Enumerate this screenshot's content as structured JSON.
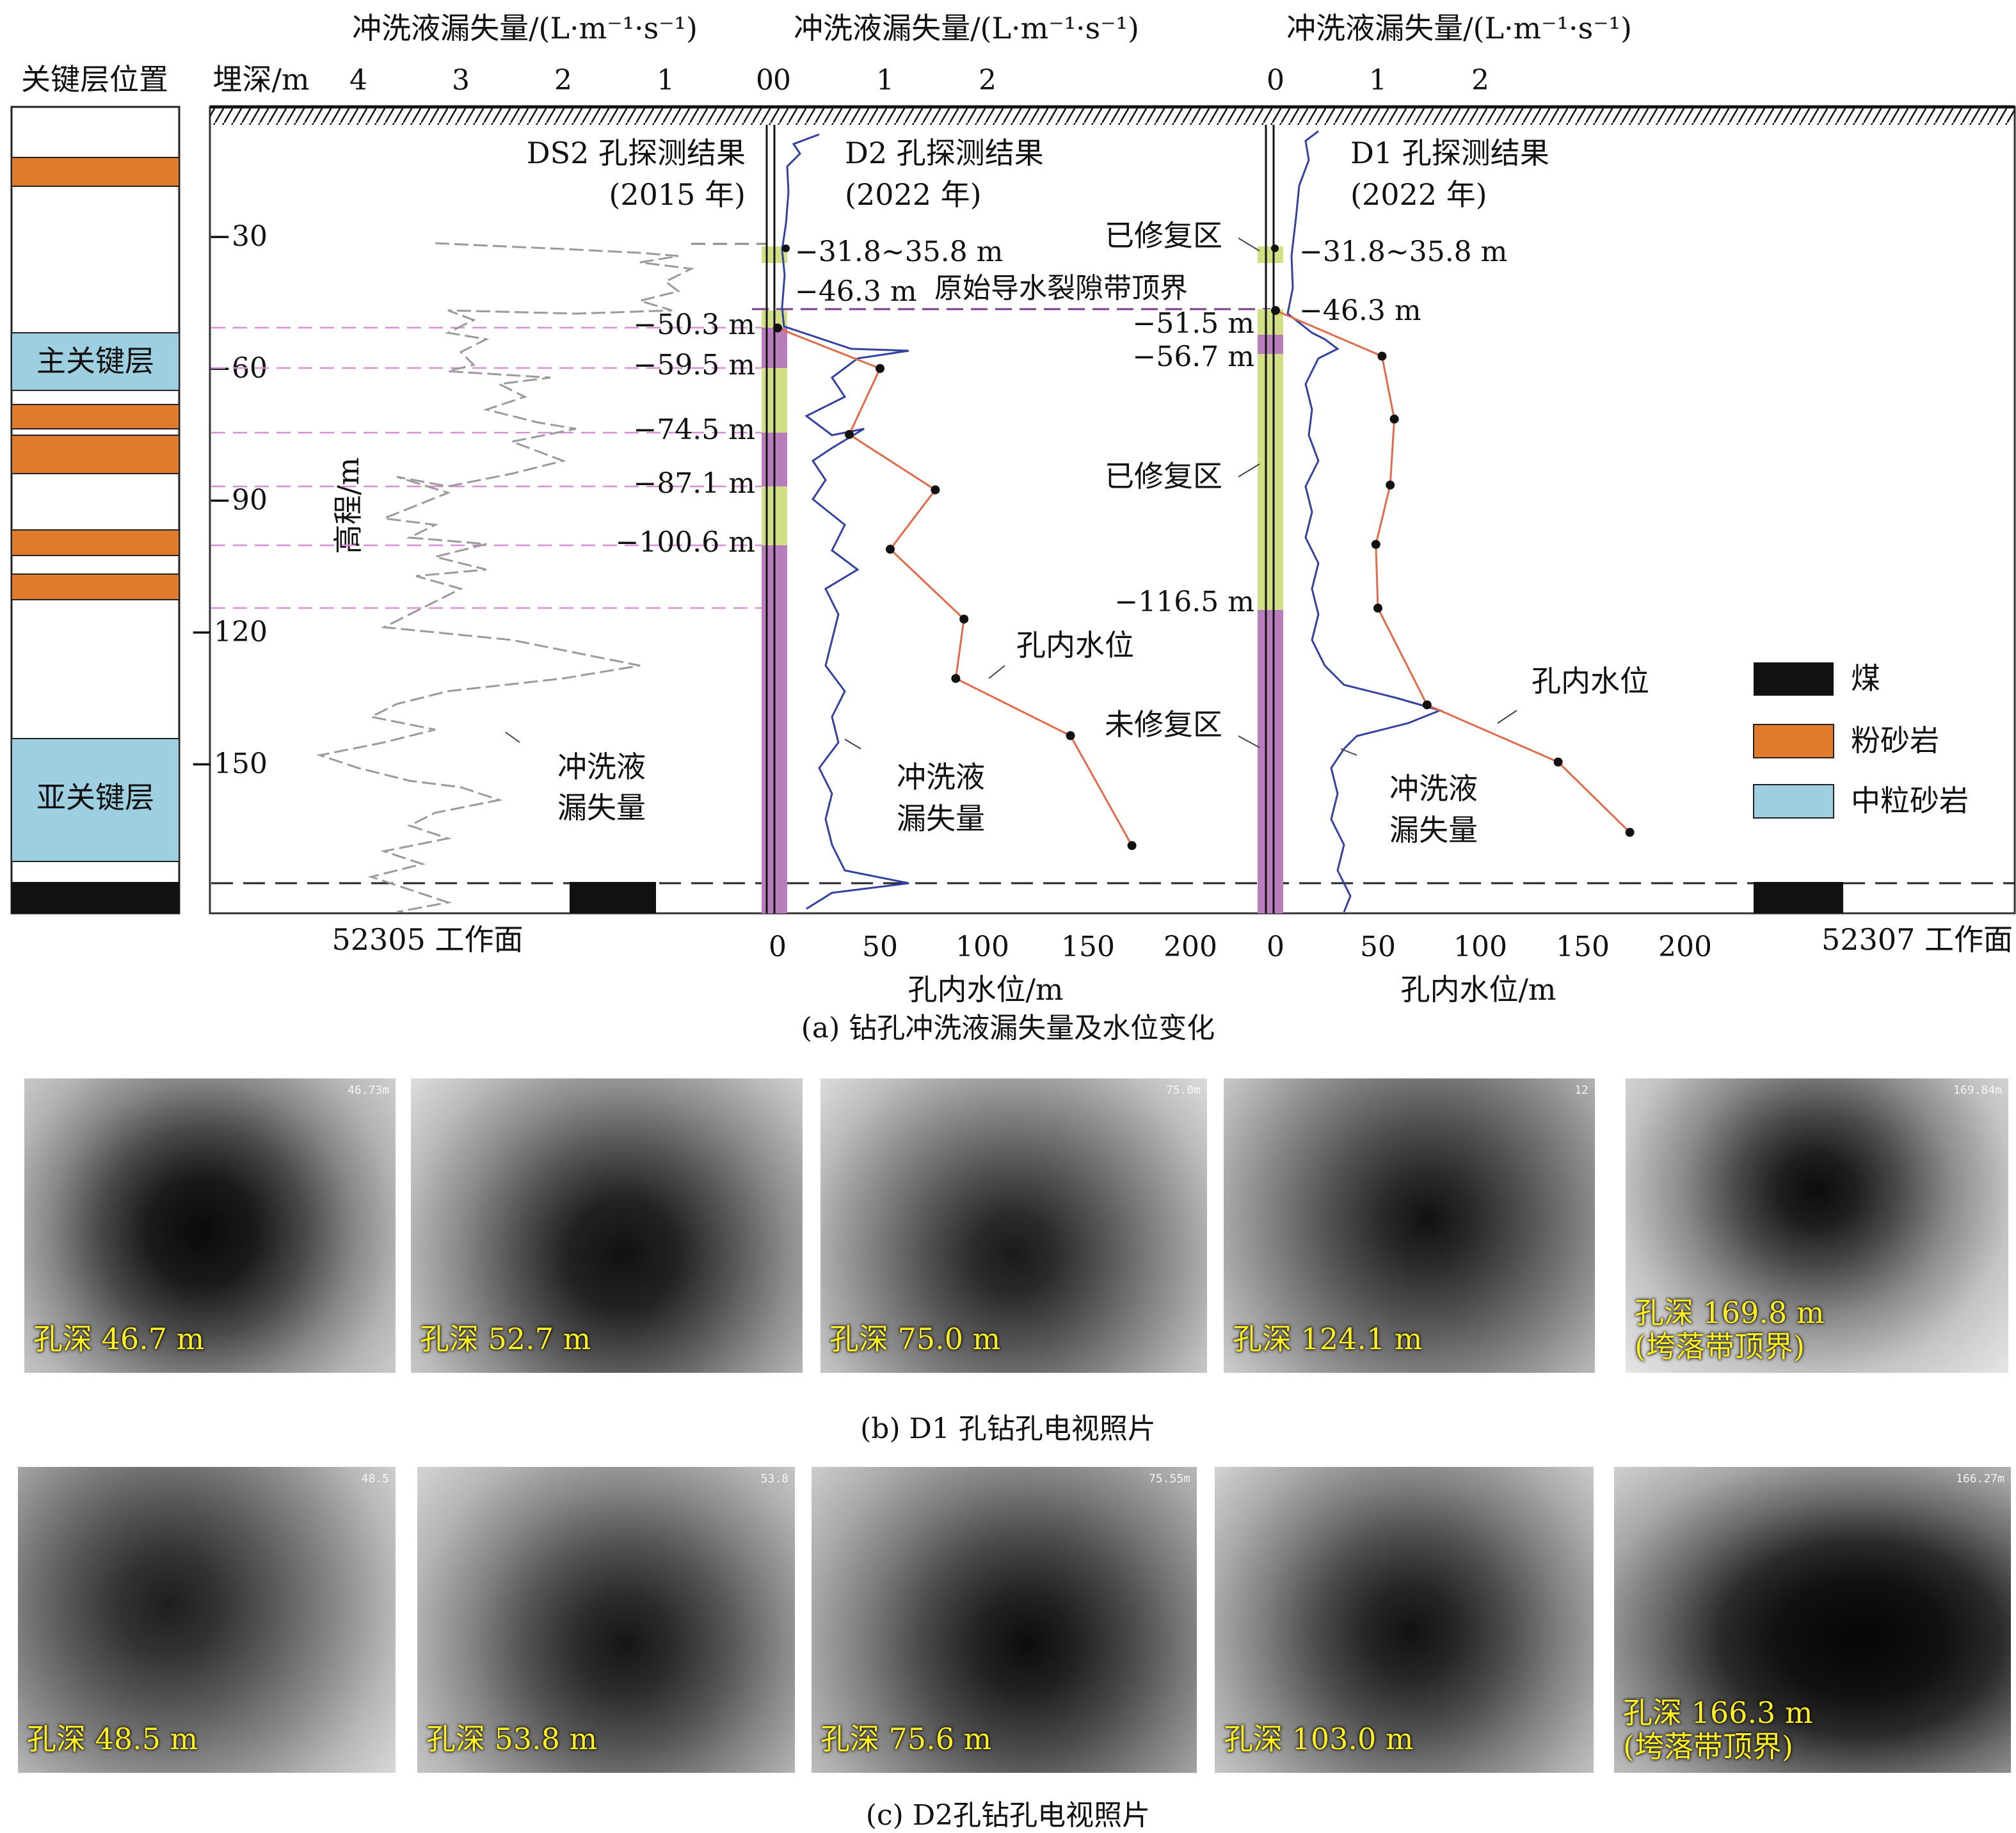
{
  "figure_a": {
    "caption": "(a) 钻孔冲洗液漏失量及水位变化",
    "strata_header": "关键层位置",
    "depth_header": "埋深/m",
    "elevation_axis_label": "高程/m",
    "elevation_ticks": [
      "−30",
      "−60",
      "−90",
      "−120",
      "−150"
    ],
    "strata": {
      "main_key_layer": "主关键层",
      "sub_key_layer": "亚关键层"
    },
    "legend": {
      "coal": "煤",
      "siltstone": "粉砂岩",
      "medium_sandstone": "中粒砂岩"
    },
    "colors": {
      "coal": "#111111",
      "siltstone": "#e07b2e",
      "medium_sandstone": "#9ecfe0",
      "repaired": "#d3df84",
      "unrepaired": "#b97dbe",
      "loss_curve_d": "#3342a0",
      "water_level": "#e06a4a",
      "ds2_loss": "#999999",
      "key_dash": "#d88ed8"
    },
    "panels": {
      "ds2": {
        "top_axis_title": "冲洗液漏失量/(L·m⁻¹·s⁻¹)",
        "top_ticks": [
          "4",
          "3",
          "2",
          "1",
          "0"
        ],
        "result_label": "DS2 孔探测结果",
        "result_year": "(2015 年)",
        "curve_label_1": "冲洗液",
        "curve_label_2": "漏失量",
        "workface": "52305 工作面"
      },
      "d2": {
        "top_axis_title": "冲洗液漏失量/(L·m⁻¹·s⁻¹)",
        "top_ticks": [
          "0",
          "1",
          "2"
        ],
        "result_label": "D2 孔探测结果",
        "result_year": "(2022 年)",
        "depth_labels": [
          "−31.8~35.8 m",
          "−46.3 m",
          "−50.3 m",
          "−59.5 m",
          "−74.5 m",
          "−87.1 m",
          "−100.6 m"
        ],
        "boundary_label": "原始导水裂隙带顶界",
        "water_level_label": "孔内水位",
        "curve_label_1": "冲洗液",
        "curve_label_2": "漏失量",
        "bottom_ticks": [
          "0",
          "50",
          "100",
          "150",
          "200"
        ],
        "bottom_axis_title": "孔内水位/m"
      },
      "d1": {
        "top_axis_title": "冲洗液漏失量/(L·m⁻¹·s⁻¹)",
        "top_ticks": [
          "0",
          "1",
          "2"
        ],
        "result_label": "D1 孔探测结果",
        "result_year": "(2022 年)",
        "depth_labels": [
          "−31.8~35.8 m",
          "−46.3 m",
          "−51.5 m",
          "−56.7 m",
          "−116.5 m"
        ],
        "zone_labels": [
          "已修复区",
          "已修复区",
          "未修复区"
        ],
        "water_level_label": "孔内水位",
        "curve_label_1": "冲洗液",
        "curve_label_2": "漏失量",
        "bottom_ticks": [
          "0",
          "50",
          "100",
          "150",
          "200"
        ],
        "bottom_axis_title": "孔内水位/m",
        "workface": "52307 工作面"
      }
    }
  },
  "chart_data": [
    {
      "type": "line",
      "name": "D2 孔内水位",
      "x_unit": "m",
      "y_unit": "m",
      "points": [
        [
          0,
          -50.3
        ],
        [
          50,
          -59.5
        ],
        [
          35,
          -74.5
        ],
        [
          77,
          -87.1
        ],
        [
          55,
          -100.6
        ],
        [
          91,
          -116.5
        ],
        [
          87,
          -130
        ],
        [
          143,
          -143
        ],
        [
          173,
          -168
        ]
      ]
    },
    {
      "type": "line",
      "name": "D1 孔内水位",
      "x_unit": "m",
      "y_unit": "m",
      "points": [
        [
          0,
          -46.3
        ],
        [
          52,
          -56.7
        ],
        [
          58,
          -71
        ],
        [
          56,
          -86
        ],
        [
          49,
          -99.5
        ],
        [
          50,
          -114
        ],
        [
          74,
          -136
        ],
        [
          138,
          -149
        ],
        [
          173,
          -165
        ]
      ]
    }
  ],
  "photos_d1": {
    "caption": "(b) D1 孔钻孔电视照片",
    "items": [
      {
        "label": "孔深 46.7 m",
        "stamp": "46.73m"
      },
      {
        "label": "孔深 52.7 m",
        "stamp": ""
      },
      {
        "label": "孔深 75.0 m",
        "stamp": "75.0m"
      },
      {
        "label": "孔深 124.1 m",
        "stamp": "12"
      },
      {
        "label": "孔深 169.8 m",
        "label2": "(垮落带顶界)",
        "stamp": "169.84m"
      }
    ]
  },
  "photos_d2": {
    "caption": "(c) D2孔钻孔电视照片",
    "items": [
      {
        "label": "孔深 48.5 m",
        "stamp": "48.5"
      },
      {
        "label": "孔深 53.8 m",
        "stamp": "53.8"
      },
      {
        "label": "孔深 75.6 m",
        "stamp": "75.55m"
      },
      {
        "label": "孔深 103.0 m",
        "stamp": ""
      },
      {
        "label": "孔深 166.3 m",
        "label2": "(垮落带顶界)",
        "stamp": "166.27m"
      }
    ]
  }
}
